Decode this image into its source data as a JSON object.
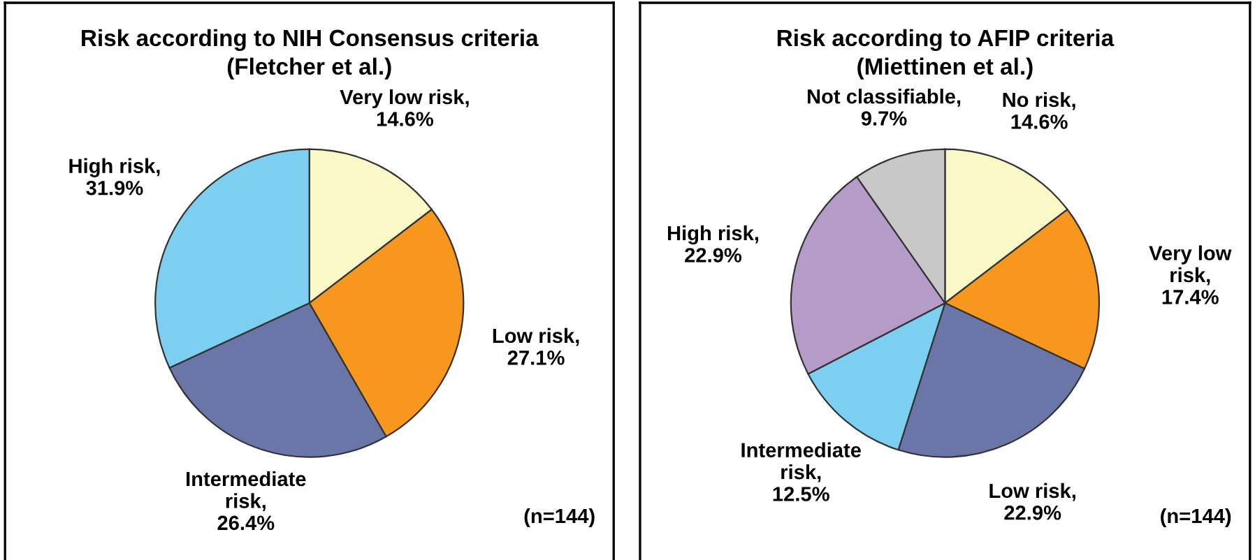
{
  "chart_data": [
    {
      "type": "pie",
      "title": "Risk according to NIH Consensus criteria\n(Fletcher et al.)",
      "categories": [
        "Very low risk",
        "Low risk",
        "Intermediate\nrisk",
        "High risk"
      ],
      "values": [
        14.6,
        27.1,
        26.4,
        31.9
      ],
      "value_labels": [
        ",\n14.6%",
        ",\n27.1%",
        ",\n26.4%",
        ",\n31.9%"
      ],
      "colors": [
        "#fbf8c8",
        "#f7971e",
        "#6b76a8",
        "#7ccff0"
      ],
      "annotations": [
        "(n=144)"
      ]
    },
    {
      "type": "pie",
      "title": "Risk according to AFIP criteria\n(Miettinen et al.)",
      "categories": [
        "No risk",
        "Very low\nrisk",
        "Low risk",
        "Intermediate\nrisk",
        "High risk",
        "Not classifiable"
      ],
      "values": [
        14.6,
        17.4,
        22.9,
        12.5,
        22.9,
        9.7
      ],
      "value_labels": [
        ",\n14.6%",
        ",\n17.4%",
        ",\n22.9%",
        ",\n12.5%",
        ",\n22.9%",
        ",\n9.7%"
      ],
      "colors": [
        "#fbf8c8",
        "#f7971e",
        "#6b76a8",
        "#7ccff0",
        "#b59cc8",
        "#c8c8c8"
      ],
      "annotations": [
        "(n=144)"
      ]
    }
  ]
}
